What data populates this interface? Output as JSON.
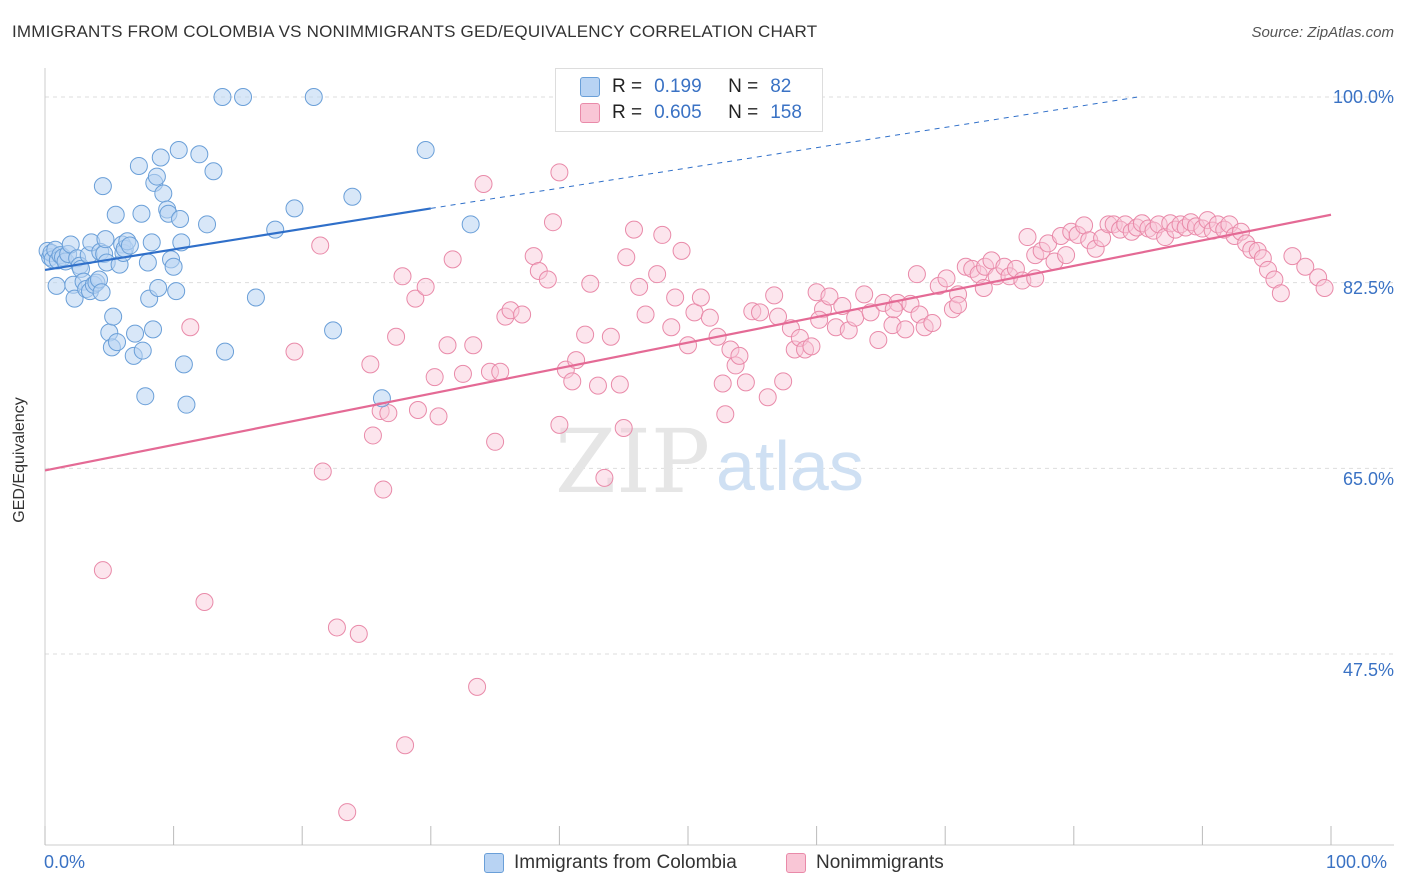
{
  "title": "IMMIGRANTS FROM COLOMBIA VS NONIMMIGRANTS GED/EQUIVALENCY CORRELATION CHART",
  "source": "Source: ZipAtlas.com",
  "watermark": {
    "zip": "ZIP",
    "atlas": "atlas"
  },
  "legend": {
    "blue": {
      "r_label": "R =",
      "r_value": "0.199",
      "n_label": "N =",
      "n_value": "82"
    },
    "pink": {
      "r_label": "R =",
      "r_value": "0.605",
      "n_label": "N =",
      "n_value": "158"
    }
  },
  "bottom_legend": {
    "blue": "Immigrants from Colombia",
    "pink": "Nonimmigrants"
  },
  "axes": {
    "ylabel": "GED/Equivalency",
    "x_left": "0.0%",
    "x_right": "100.0%",
    "yticks": [
      "100.0%",
      "82.5%",
      "65.0%",
      "47.5%"
    ]
  },
  "colors": {
    "blue_fill": "#b8d3f3",
    "blue_stroke": "#6a9fd8",
    "blue_line": "#2f6fc9",
    "pink_fill": "#f9c6d6",
    "pink_stroke": "#e98aa9",
    "pink_line": "#e46a95",
    "tick_text": "#3a72c4",
    "grid": "#dddddd"
  },
  "chart_data": {
    "type": "scatter",
    "xlim": [
      0,
      100
    ],
    "ylim": [
      30,
      100
    ],
    "yticks": [
      100,
      82.5,
      65,
      47.5
    ],
    "grid": "horizontal dashed",
    "series": [
      {
        "name": "Immigrants from Colombia",
        "trend": {
          "x": [
            0,
            30
          ],
          "y": [
            83.7,
            89.5
          ],
          "dashed_to": [
            85,
            100
          ]
        },
        "points": [
          [
            0.2,
            85.5
          ],
          [
            0.4,
            84.9
          ],
          [
            0.5,
            85.3
          ],
          [
            0.6,
            84.7
          ],
          [
            0.8,
            85.6
          ],
          [
            1.0,
            84.6
          ],
          [
            1.2,
            85.1
          ],
          [
            1.4,
            84.9
          ],
          [
            1.6,
            84.5
          ],
          [
            1.8,
            85.2
          ],
          [
            0.9,
            82.2
          ],
          [
            2.0,
            86.1
          ],
          [
            2.2,
            82.3
          ],
          [
            2.3,
            81.0
          ],
          [
            2.5,
            84.8
          ],
          [
            2.7,
            84.1
          ],
          [
            2.8,
            83.8
          ],
          [
            3.0,
            82.6
          ],
          [
            3.2,
            81.9
          ],
          [
            3.4,
            85.1
          ],
          [
            3.5,
            81.7
          ],
          [
            3.6,
            86.3
          ],
          [
            3.8,
            82.3
          ],
          [
            4.0,
            82.5
          ],
          [
            4.2,
            82.8
          ],
          [
            4.3,
            85.4
          ],
          [
            4.4,
            81.6
          ],
          [
            4.5,
            91.6
          ],
          [
            4.6,
            85.2
          ],
          [
            4.7,
            86.6
          ],
          [
            4.8,
            84.4
          ],
          [
            5.0,
            77.8
          ],
          [
            5.2,
            76.4
          ],
          [
            5.3,
            79.3
          ],
          [
            5.5,
            88.9
          ],
          [
            5.6,
            76.9
          ],
          [
            5.8,
            84.2
          ],
          [
            6.0,
            86.1
          ],
          [
            6.1,
            85.3
          ],
          [
            6.2,
            85.7
          ],
          [
            6.4,
            86.4
          ],
          [
            6.6,
            86.0
          ],
          [
            6.9,
            75.6
          ],
          [
            7.0,
            77.7
          ],
          [
            7.3,
            93.5
          ],
          [
            7.5,
            89.0
          ],
          [
            7.6,
            76.1
          ],
          [
            7.8,
            71.8
          ],
          [
            8.0,
            84.4
          ],
          [
            8.1,
            81.0
          ],
          [
            8.3,
            86.3
          ],
          [
            8.4,
            78.1
          ],
          [
            8.5,
            91.9
          ],
          [
            8.8,
            82.0
          ],
          [
            8.7,
            92.5
          ],
          [
            9.0,
            94.3
          ],
          [
            9.2,
            90.9
          ],
          [
            9.5,
            89.4
          ],
          [
            9.6,
            89.0
          ],
          [
            9.8,
            84.7
          ],
          [
            10.0,
            84.0
          ],
          [
            10.2,
            81.7
          ],
          [
            10.4,
            95.0
          ],
          [
            10.5,
            88.5
          ],
          [
            10.6,
            86.3
          ],
          [
            10.8,
            74.8
          ],
          [
            11.0,
            71.0
          ],
          [
            12.0,
            94.6
          ],
          [
            12.6,
            88.0
          ],
          [
            13.1,
            93.0
          ],
          [
            14.0,
            76.0
          ],
          [
            13.8,
            100.0
          ],
          [
            15.4,
            100.0
          ],
          [
            16.4,
            81.1
          ],
          [
            17.9,
            87.5
          ],
          [
            19.4,
            89.5
          ],
          [
            20.9,
            100.0
          ],
          [
            22.4,
            78.0
          ],
          [
            23.9,
            90.6
          ],
          [
            26.2,
            71.6
          ],
          [
            29.6,
            95.0
          ],
          [
            33.1,
            88.0
          ]
        ]
      },
      {
        "name": "Nonimmigrants",
        "trend": {
          "x": [
            0,
            100
          ],
          "y": [
            64.8,
            88.9
          ]
        },
        "points": [
          [
            4.5,
            55.4
          ],
          [
            11.3,
            78.3
          ],
          [
            12.4,
            52.4
          ],
          [
            19.4,
            76.0
          ],
          [
            21.4,
            86.0
          ],
          [
            21.6,
            64.7
          ],
          [
            22.7,
            50.0
          ],
          [
            23.5,
            32.6
          ],
          [
            24.4,
            49.4
          ],
          [
            25.5,
            68.1
          ],
          [
            25.3,
            74.8
          ],
          [
            26.1,
            70.4
          ],
          [
            26.3,
            63.0
          ],
          [
            26.7,
            70.2
          ],
          [
            27.3,
            77.4
          ],
          [
            27.8,
            83.1
          ],
          [
            28.0,
            38.9
          ],
          [
            28.8,
            81.0
          ],
          [
            29.0,
            70.5
          ],
          [
            29.6,
            82.1
          ],
          [
            30.3,
            73.6
          ],
          [
            30.6,
            69.9
          ],
          [
            31.3,
            76.6
          ],
          [
            31.7,
            84.7
          ],
          [
            32.5,
            73.9
          ],
          [
            33.3,
            76.6
          ],
          [
            33.6,
            44.4
          ],
          [
            34.1,
            91.8
          ],
          [
            34.6,
            74.1
          ],
          [
            35.0,
            67.5
          ],
          [
            35.4,
            74.1
          ],
          [
            35.8,
            79.3
          ],
          [
            36.2,
            79.9
          ],
          [
            37.1,
            79.5
          ],
          [
            38.0,
            85.0
          ],
          [
            38.4,
            83.6
          ],
          [
            39.1,
            82.8
          ],
          [
            39.5,
            88.2
          ],
          [
            40.0,
            92.9
          ],
          [
            40.0,
            69.1
          ],
          [
            40.5,
            74.3
          ],
          [
            41.0,
            73.2
          ],
          [
            41.3,
            75.2
          ],
          [
            42.0,
            77.6
          ],
          [
            42.4,
            82.4
          ],
          [
            43.0,
            72.8
          ],
          [
            43.5,
            64.1
          ],
          [
            44.0,
            77.4
          ],
          [
            44.7,
            72.9
          ],
          [
            45.0,
            68.8
          ],
          [
            45.2,
            84.9
          ],
          [
            45.8,
            87.5
          ],
          [
            46.2,
            82.1
          ],
          [
            46.7,
            79.5
          ],
          [
            47.6,
            83.3
          ],
          [
            48.0,
            87.0
          ],
          [
            48.7,
            78.3
          ],
          [
            49.0,
            81.1
          ],
          [
            49.5,
            85.5
          ],
          [
            50.0,
            76.6
          ],
          [
            50.5,
            79.7
          ],
          [
            51.0,
            81.1
          ],
          [
            51.7,
            79.2
          ],
          [
            52.3,
            77.4
          ],
          [
            52.7,
            73.0
          ],
          [
            52.9,
            70.1
          ],
          [
            53.3,
            76.2
          ],
          [
            53.7,
            74.7
          ],
          [
            54.0,
            75.6
          ],
          [
            54.5,
            73.1
          ],
          [
            55.0,
            79.8
          ],
          [
            55.6,
            79.7
          ],
          [
            56.2,
            71.7
          ],
          [
            56.7,
            81.3
          ],
          [
            57.0,
            79.3
          ],
          [
            57.4,
            73.2
          ],
          [
            58.0,
            78.2
          ],
          [
            58.3,
            76.2
          ],
          [
            58.7,
            77.3
          ],
          [
            59.1,
            76.2
          ],
          [
            59.6,
            76.5
          ],
          [
            60.0,
            81.6
          ],
          [
            60.5,
            80.0
          ],
          [
            61.0,
            81.2
          ],
          [
            61.5,
            78.3
          ],
          [
            62.0,
            80.3
          ],
          [
            62.5,
            78.0
          ],
          [
            63.0,
            79.2
          ],
          [
            63.7,
            81.4
          ],
          [
            64.2,
            79.7
          ],
          [
            64.8,
            77.1
          ],
          [
            65.2,
            80.6
          ],
          [
            65.9,
            78.5
          ],
          [
            66.3,
            80.6
          ],
          [
            66.9,
            78.1
          ],
          [
            67.3,
            80.5
          ],
          [
            67.8,
            83.3
          ],
          [
            68.0,
            79.5
          ],
          [
            68.4,
            78.3
          ],
          [
            69.0,
            78.7
          ],
          [
            69.5,
            82.2
          ],
          [
            70.1,
            82.9
          ],
          [
            70.6,
            80.0
          ],
          [
            71.0,
            81.4
          ],
          [
            71.6,
            84.0
          ],
          [
            72.1,
            83.8
          ],
          [
            72.6,
            83.3
          ],
          [
            73.1,
            84.0
          ],
          [
            73.6,
            84.6
          ],
          [
            74.0,
            83.1
          ],
          [
            74.6,
            84.0
          ],
          [
            75.0,
            83.1
          ],
          [
            75.5,
            83.8
          ],
          [
            76.0,
            82.7
          ],
          [
            76.4,
            86.8
          ],
          [
            77.0,
            85.1
          ],
          [
            77.5,
            85.5
          ],
          [
            78.0,
            86.2
          ],
          [
            78.5,
            84.5
          ],
          [
            79.0,
            86.9
          ],
          [
            79.4,
            85.1
          ],
          [
            79.8,
            87.3
          ],
          [
            80.3,
            87.0
          ],
          [
            80.8,
            87.9
          ],
          [
            81.2,
            86.5
          ],
          [
            81.7,
            85.7
          ],
          [
            82.2,
            86.7
          ],
          [
            82.7,
            88.0
          ],
          [
            83.1,
            88.0
          ],
          [
            83.6,
            87.5
          ],
          [
            84.0,
            88.0
          ],
          [
            84.5,
            87.3
          ],
          [
            84.9,
            87.7
          ],
          [
            85.3,
            88.1
          ],
          [
            85.8,
            87.6
          ],
          [
            86.2,
            87.4
          ],
          [
            86.6,
            88.0
          ],
          [
            87.1,
            86.8
          ],
          [
            87.5,
            88.1
          ],
          [
            87.9,
            87.5
          ],
          [
            88.3,
            88.0
          ],
          [
            88.7,
            87.7
          ],
          [
            89.1,
            88.2
          ],
          [
            89.5,
            87.8
          ],
          [
            90.0,
            87.6
          ],
          [
            90.4,
            88.4
          ],
          [
            90.8,
            87.4
          ],
          [
            91.2,
            88.0
          ],
          [
            91.7,
            87.5
          ],
          [
            92.1,
            88.0
          ],
          [
            92.5,
            86.9
          ],
          [
            93.0,
            87.3
          ],
          [
            93.4,
            86.2
          ],
          [
            93.8,
            85.6
          ],
          [
            94.3,
            85.5
          ],
          [
            94.7,
            84.8
          ],
          [
            95.1,
            83.7
          ],
          [
            95.6,
            82.8
          ],
          [
            96.1,
            81.5
          ],
          [
            97.0,
            85.0
          ],
          [
            98.0,
            84.0
          ],
          [
            99.0,
            83.0
          ],
          [
            99.5,
            82.0
          ],
          [
            60.2,
            79.0
          ],
          [
            66.0,
            80.0
          ],
          [
            71.0,
            80.4
          ],
          [
            73.0,
            82.0
          ],
          [
            77.0,
            82.9
          ]
        ]
      }
    ]
  }
}
